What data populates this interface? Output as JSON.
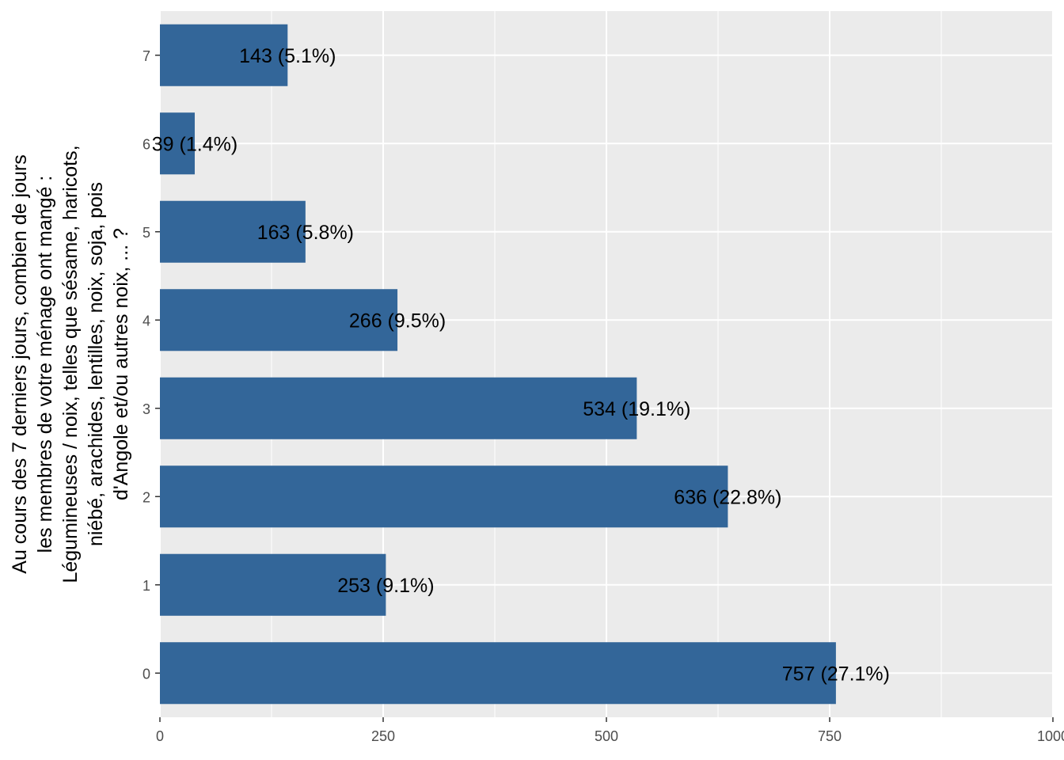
{
  "chart_data": {
    "type": "bar",
    "orientation": "horizontal",
    "categories": [
      "0",
      "1",
      "2",
      "3",
      "4",
      "5",
      "6",
      "7"
    ],
    "values": [
      757,
      253,
      636,
      534,
      266,
      163,
      39,
      143
    ],
    "labels": [
      "757 (27.1%)",
      "253 (9.1%)",
      "636 (22.8%)",
      "534 (19.1%)",
      "266 (9.5%)",
      "163 (5.8%)",
      "39 (1.4%)",
      "143 (5.1%)"
    ],
    "xlim": [
      0,
      1000
    ],
    "x_ticks": [
      0,
      250,
      500,
      750,
      1000
    ],
    "x_tick_labels": [
      "0",
      "250",
      "500",
      "750",
      "1000"
    ],
    "ylabel_lines": [
      "Au cours des 7 derniers jours, combien de jours",
      "les membres de votre ménage ont mangé :",
      "Légumineuses / noix, telles que sésame, haricots,",
      "niébé, arachides, lentilles, noix, soja, pois",
      "d'Angole et/ou autres noix, ... ?"
    ],
    "xlabel": "",
    "grid": true,
    "legend": "none",
    "colors": {
      "bar": "#336699",
      "panel": "#EBEBEB",
      "grid": "#FFFFFF"
    }
  }
}
